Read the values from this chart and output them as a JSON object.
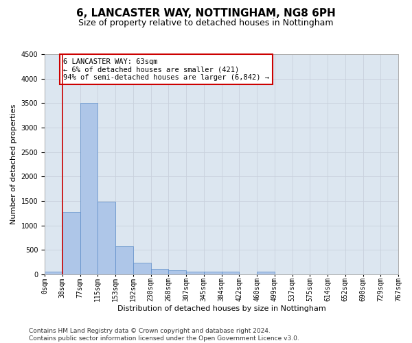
{
  "title": "6, LANCASTER WAY, NOTTINGHAM, NG8 6PH",
  "subtitle": "Size of property relative to detached houses in Nottingham",
  "xlabel": "Distribution of detached houses by size in Nottingham",
  "ylabel": "Number of detached properties",
  "bar_values": [
    50,
    1270,
    3500,
    1480,
    580,
    240,
    115,
    80,
    55,
    55,
    55,
    0,
    55,
    0,
    0,
    0,
    0,
    0,
    0,
    0
  ],
  "bin_labels": [
    "0sqm",
    "38sqm",
    "77sqm",
    "115sqm",
    "153sqm",
    "192sqm",
    "230sqm",
    "268sqm",
    "307sqm",
    "345sqm",
    "384sqm",
    "422sqm",
    "460sqm",
    "499sqm",
    "537sqm",
    "575sqm",
    "614sqm",
    "652sqm",
    "690sqm",
    "729sqm",
    "767sqm"
  ],
  "bar_color": "#aec6e8",
  "bar_edge_color": "#5b8cc8",
  "vline_x": 1,
  "vline_color": "#cc0000",
  "annotation_text": "6 LANCASTER WAY: 63sqm\n← 6% of detached houses are smaller (421)\n94% of semi-detached houses are larger (6,842) →",
  "annotation_box_color": "#ffffff",
  "annotation_box_edge": "#cc0000",
  "ylim": [
    0,
    4500
  ],
  "yticks": [
    0,
    500,
    1000,
    1500,
    2000,
    2500,
    3000,
    3500,
    4000,
    4500
  ],
  "grid_color": "#c8d0dc",
  "bg_color": "#dce6f0",
  "footer_text": "Contains HM Land Registry data © Crown copyright and database right 2024.\nContains public sector information licensed under the Open Government Licence v3.0.",
  "title_fontsize": 11,
  "subtitle_fontsize": 9,
  "axis_label_fontsize": 8,
  "tick_fontsize": 7,
  "footer_fontsize": 6.5,
  "annotation_fontsize": 7.5
}
